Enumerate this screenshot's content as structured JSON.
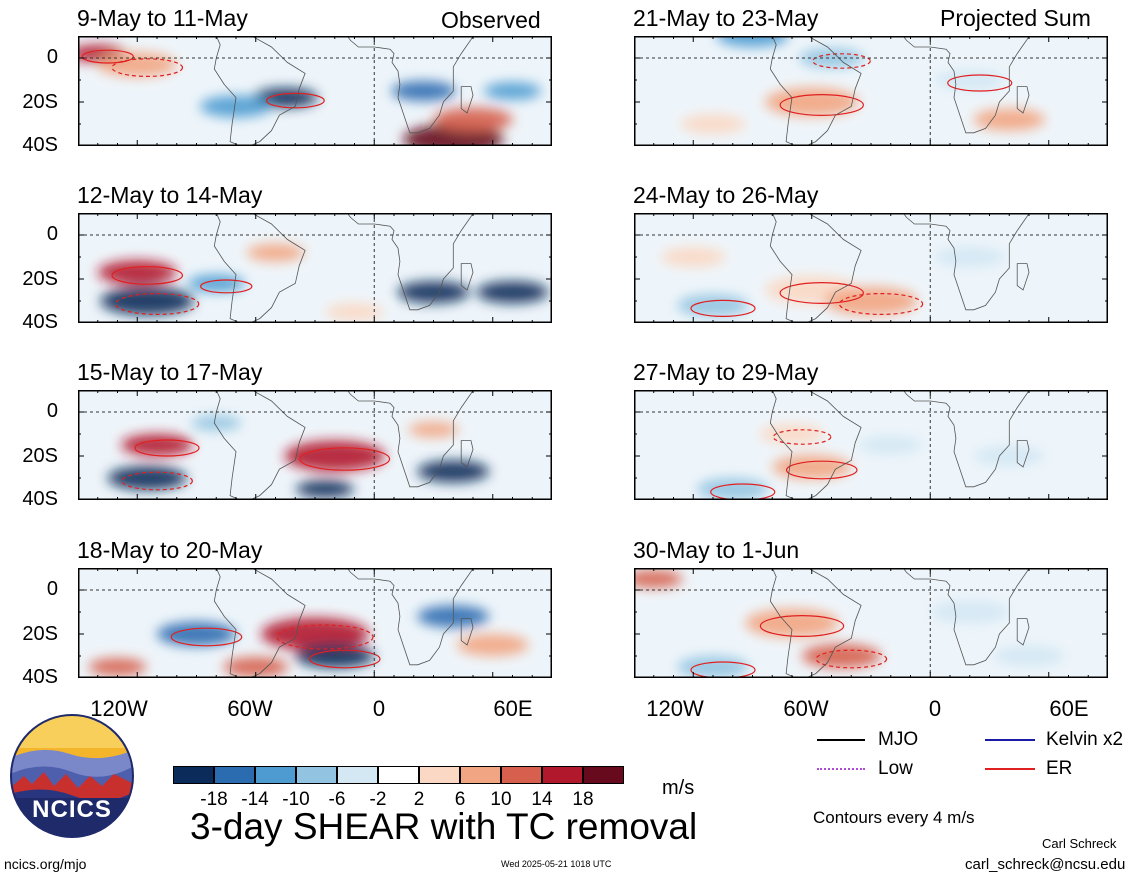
{
  "panels_left": [
    {
      "title": "9-May to 11-May",
      "tag": "Observed"
    },
    {
      "title": "12-May to 14-May",
      "tag": ""
    },
    {
      "title": "15-May to 17-May",
      "tag": ""
    },
    {
      "title": "18-May to 20-May",
      "tag": ""
    }
  ],
  "panels_right": [
    {
      "title": "21-May to 23-May",
      "tag": "Projected Sum"
    },
    {
      "title": "24-May to 26-May",
      "tag": ""
    },
    {
      "title": "27-May to 29-May",
      "tag": ""
    },
    {
      "title": "30-May to 1-Jun",
      "tag": ""
    }
  ],
  "lat_labels": [
    "0",
    "20S",
    "40S"
  ],
  "lon_labels": [
    "120W",
    "60W",
    "0",
    "60E"
  ],
  "colorbar": {
    "units": "m/s",
    "ticks": [
      "-18",
      "-14",
      "-10",
      "-6",
      "-2",
      "2",
      "6",
      "10",
      "14",
      "18"
    ],
    "colors": [
      "#0b2b5a",
      "#2b6cb0",
      "#4d9bd1",
      "#92c4e1",
      "#d4e8f4",
      "#ffffff",
      "#fbd8c3",
      "#f2a582",
      "#d6604d",
      "#b2182b",
      "#670a1d"
    ]
  },
  "legend": {
    "mjo": {
      "label": "MJO",
      "color": "#000000"
    },
    "kelvin": {
      "label": "Kelvin x2",
      "color": "#1a1aa6"
    },
    "low": {
      "label": "Low",
      "color": "#b14bd6"
    },
    "er": {
      "label": "ER",
      "color": "#e02020"
    },
    "contours_note": "Contours every 4 m/s"
  },
  "title": "3-day SHEAR with TC removal",
  "logo_text": "NCICS",
  "author": "Carl Schreck",
  "email": "carl_schreck@ncsu.edu",
  "website": "ncics.org/mjo",
  "timestamp": "Wed 2025-05-21 1018 UTC"
}
